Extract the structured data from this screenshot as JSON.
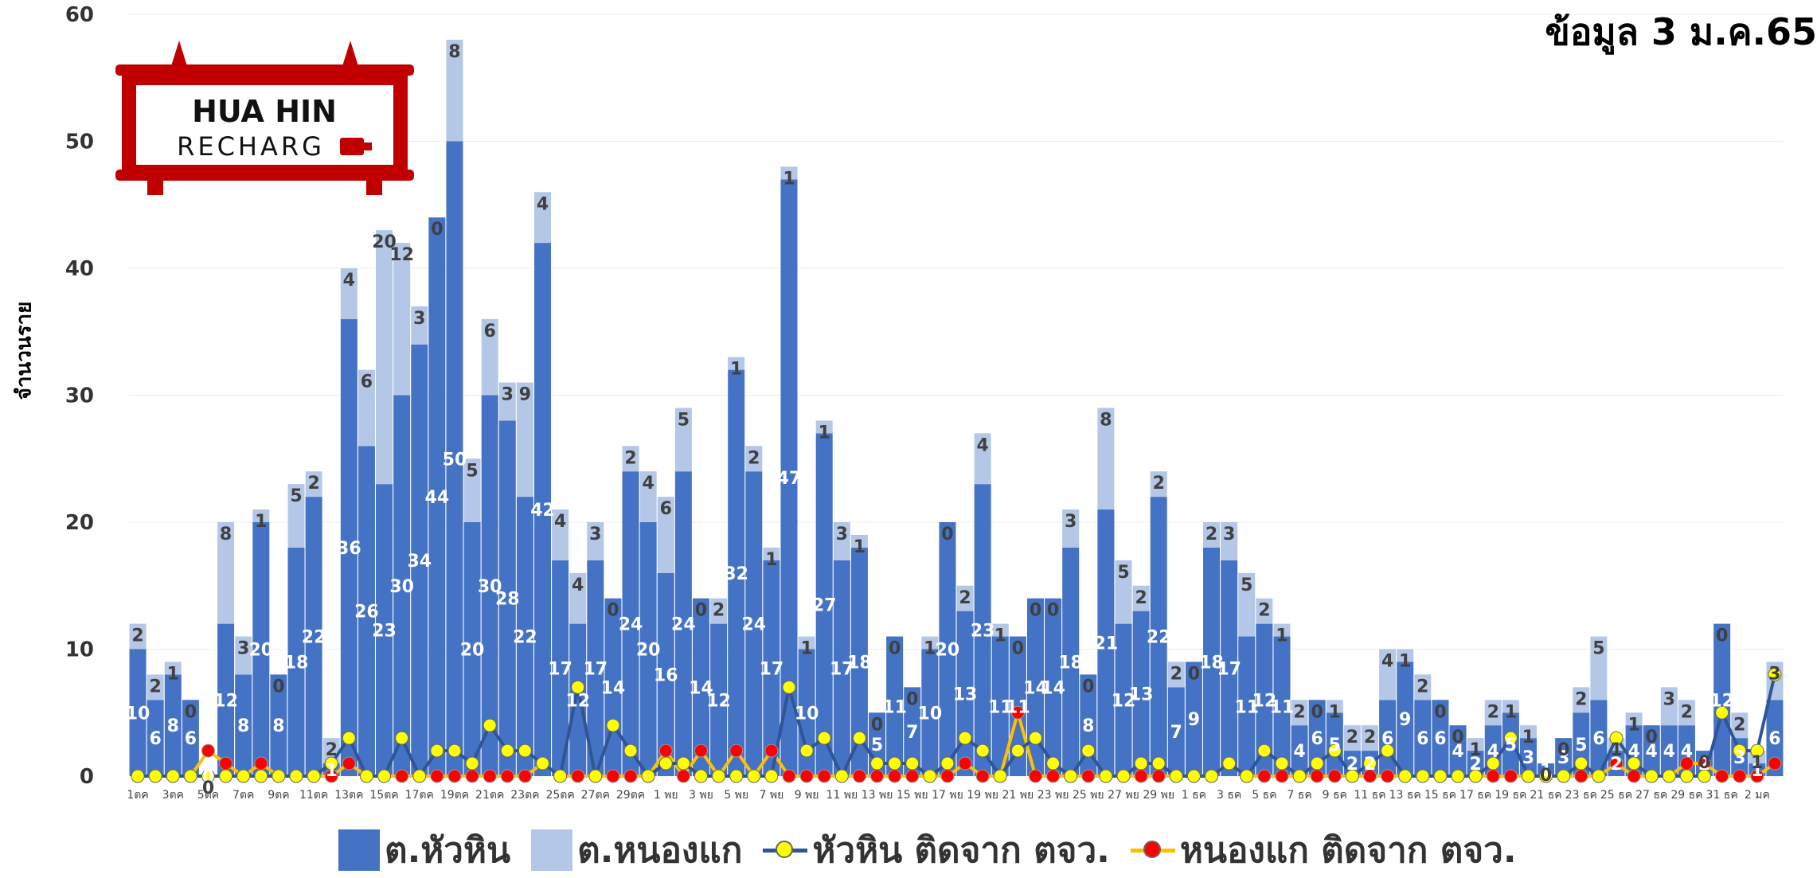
{
  "header": {
    "date_text": "ข้อมูล 3 ม.ค.65"
  },
  "logo": {
    "line1": "HUA HIN",
    "line2": "RECHARG"
  },
  "colors": {
    "huahin": "#4472C4",
    "nongkae": "#B4C7E7",
    "line_hh": "#2F5597",
    "dot_hh": "#FFFF00",
    "line_nk": "#FFC000",
    "dot_nk": "#FF0000"
  },
  "legend": [
    {
      "label": "ต.หัวหิน",
      "kind": "box",
      "color": "#4472C4"
    },
    {
      "label": "ต.หนองแก",
      "kind": "box",
      "color": "#B4C7E7"
    },
    {
      "label": "หัวหิน ติดจาก ตจว.",
      "kind": "line",
      "line": "#2F5597",
      "dot": "#FFFF00"
    },
    {
      "label": "หนองแก ติดจาก ตจว.",
      "kind": "line",
      "line": "#FFC000",
      "dot": "#FF0000"
    }
  ],
  "chart_data": {
    "type": "bar",
    "stacked": true,
    "ylabel": "จำนวนราย",
    "ylim": [
      0,
      60
    ],
    "yticks": [
      "0",
      "10",
      "20",
      "30",
      "40",
      "50",
      "60"
    ],
    "x_tick_labels": [
      "1ตค",
      "3ตค",
      "5ตค",
      "7ตค",
      "9ตค",
      "11ตค",
      "13ตค",
      "15ตค",
      "17ตค",
      "19ตค",
      "21ตค",
      "23ตค",
      "25ตค",
      "27ตค",
      "29ตค",
      "1 พย",
      "3 พย",
      "5 พย",
      "7 พย",
      "9 พย",
      "11 พย",
      "13 พย",
      "15 พย",
      "17 พย",
      "19 พย",
      "21 พย",
      "23 พย",
      "25 พย",
      "27 พย",
      "29 พย",
      "1 ธค",
      "3 ธค",
      "5 ธค",
      "7 ธค",
      "9 ธค",
      "11 ธค",
      "13 ธค",
      "15 ธค",
      "17 ธค",
      "19 ธค",
      "21 ธค",
      "23 ธค",
      "25 ธค",
      "27 ธค",
      "29 ธค",
      "31 ธค",
      "2 มค"
    ],
    "series": [
      {
        "name": "ต.หัวหิน",
        "values": [
          10,
          6,
          8,
          6,
          0,
          12,
          8,
          20,
          8,
          18,
          22,
          1,
          36,
          26,
          23,
          30,
          34,
          44,
          50,
          20,
          30,
          28,
          22,
          42,
          17,
          12,
          17,
          14,
          24,
          20,
          16,
          24,
          14,
          12,
          32,
          24,
          17,
          47,
          10,
          27,
          17,
          18,
          5,
          11,
          7,
          10,
          20,
          13,
          23,
          11,
          11,
          14,
          14,
          18,
          8,
          21,
          12,
          13,
          22,
          7,
          9,
          18,
          17,
          11,
          12,
          11,
          4,
          6,
          5,
          2,
          2,
          6,
          9,
          6,
          6,
          4,
          2,
          4,
          5,
          3,
          1,
          3,
          5,
          6,
          2,
          4,
          4,
          4,
          4,
          2,
          12,
          3,
          1,
          6
        ]
      },
      {
        "name": "ต.หนองแก",
        "values": [
          2,
          2,
          1,
          0,
          0,
          8,
          3,
          1,
          0,
          5,
          2,
          2,
          4,
          6,
          20,
          12,
          3,
          0,
          8,
          5,
          6,
          3,
          9,
          4,
          4,
          4,
          3,
          0,
          2,
          4,
          6,
          5,
          0,
          2,
          1,
          2,
          1,
          1,
          1,
          1,
          3,
          1,
          0,
          0,
          0,
          1,
          0,
          2,
          4,
          1,
          0,
          0,
          0,
          3,
          0,
          8,
          5,
          2,
          2,
          2,
          0,
          2,
          3,
          5,
          2,
          1,
          2,
          0,
          1,
          2,
          2,
          4,
          1,
          2,
          0,
          0,
          1,
          2,
          1,
          1,
          0,
          0,
          2,
          5,
          1,
          1,
          0,
          3,
          2,
          0,
          0,
          2,
          1,
          3
        ]
      },
      {
        "name": "หัวหิน ติดจาก ตจว.",
        "values": [
          0,
          0,
          0,
          0,
          0,
          0,
          0,
          0,
          0,
          0,
          0,
          1,
          3,
          0,
          0,
          3,
          0,
          2,
          2,
          1,
          4,
          2,
          2,
          1,
          0,
          7,
          0,
          4,
          2,
          0,
          1,
          1,
          0,
          0,
          0,
          0,
          0,
          7,
          2,
          3,
          0,
          3,
          1,
          1,
          1,
          0,
          1,
          3,
          2,
          0,
          2,
          3,
          1,
          0,
          2,
          0,
          0,
          1,
          1,
          0,
          0,
          0,
          1,
          0,
          2,
          1,
          0,
          1,
          2,
          0,
          1,
          2,
          0,
          0,
          0,
          0,
          0,
          1,
          3,
          0,
          0,
          0,
          1,
          0,
          3,
          1,
          0,
          0,
          0,
          0,
          5,
          2,
          2,
          8
        ]
      },
      {
        "name": "หนองแก ติดจาก ตจว.",
        "values": [
          0,
          0,
          0,
          0,
          2,
          1,
          0,
          1,
          0,
          0,
          0,
          0,
          1,
          0,
          0,
          0,
          0,
          0,
          0,
          0,
          0,
          0,
          0,
          1,
          0,
          0,
          0,
          0,
          0,
          0,
          2,
          0,
          2,
          0,
          2,
          0,
          2,
          0,
          0,
          0,
          0,
          0,
          0,
          0,
          0,
          0,
          0,
          1,
          0,
          0,
          5,
          0,
          0,
          0,
          0,
          0,
          0,
          0,
          0,
          0,
          0,
          0,
          1,
          0,
          0,
          0,
          0,
          0,
          0,
          0,
          0,
          0,
          0,
          0,
          0,
          0,
          0,
          0,
          0,
          0,
          0,
          0,
          0,
          0,
          1,
          0,
          0,
          0,
          1,
          1,
          0,
          0,
          0,
          1
        ]
      }
    ]
  }
}
